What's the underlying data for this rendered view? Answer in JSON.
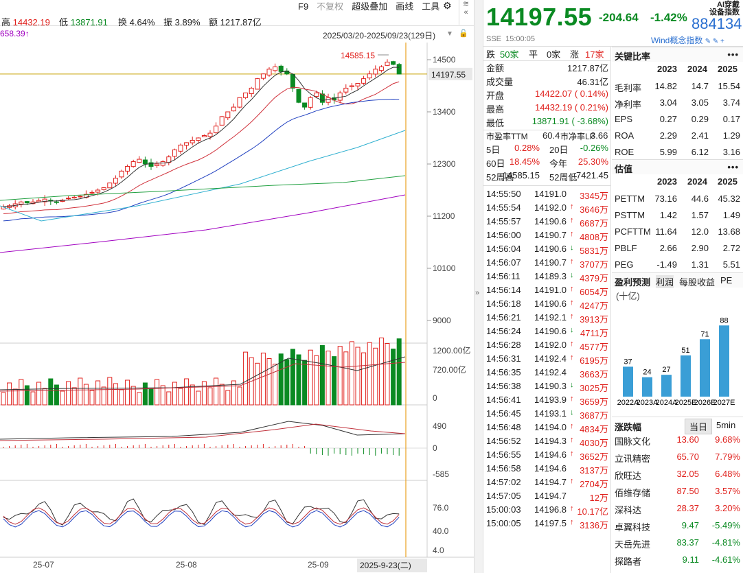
{
  "topbar": {
    "high_label": "高",
    "high": "14432.19",
    "low_label": "低",
    "low": "13871.91",
    "turn_label": "换",
    "turn": "4.64%",
    "amp_label": "振",
    "amp": "3.89%",
    "amt_label": "额",
    "amt": "1217.87亿",
    "ma_tag": "658.39↑"
  },
  "toolbar": {
    "f9": "F9",
    "nofq": "不复权",
    "overlay": "超级叠加",
    "draw": "画线",
    "tools": "工具",
    "gear": "gear-icon",
    "wifi": "wifi-icon"
  },
  "range": "2025/03/20-2025/09/23(129日)",
  "main_axis": {
    "ticks": [
      "14500",
      "13400",
      "12300",
      "11200",
      "10100",
      "9000"
    ],
    "current": "14197.55",
    "high_mark": "14585.15"
  },
  "vol_axis": {
    "ticks": [
      "1200.00亿",
      "720.00亿",
      "0"
    ]
  },
  "macd_axis": {
    "ticks": [
      "490",
      "0",
      "-585"
    ]
  },
  "kdj_axis": {
    "ticks": [
      "76.0",
      "40.0",
      "4.0"
    ]
  },
  "date_axis": {
    "ticks": [
      "25-07",
      "25-08",
      "25-09"
    ],
    "cursor": "2025-9-23(二)"
  },
  "quote": {
    "price": "14197.55",
    "change": "-204.64",
    "pct": "-1.42%",
    "code": "884134",
    "ai1": "AI穿戴",
    "ai2": "设备指数",
    "exchange": "SSE",
    "time": "15:00:05",
    "wind": "Wind概念指数"
  },
  "breadth": {
    "up_label": "跌",
    "up": "50家",
    "flat_label": "平",
    "flat": "0家",
    "down_label": "涨",
    "down": "17家"
  },
  "stats": [
    {
      "k": "金额",
      "v": "1217.87亿",
      "c": ""
    },
    {
      "k": "成交量",
      "v": "46.31亿",
      "c": ""
    },
    {
      "k": "开盘",
      "v": "14422.07 ( 0.14%)",
      "c": "red"
    },
    {
      "k": "最高",
      "v": "14432.19 ( 0.21%)",
      "c": "red"
    },
    {
      "k": "最低",
      "v": "13871.91 ( -3.68%)",
      "c": "green"
    }
  ],
  "val": {
    "pe_label": "市盈率TTM",
    "pe": "60.4",
    "pb_label": "市净率LF",
    "pb": "3.66"
  },
  "perf": [
    {
      "k": "5日",
      "v": "0.28%",
      "c": "red",
      "k2": "20日",
      "v2": "-0.26%",
      "c2": "green"
    },
    {
      "k": "60日",
      "v": "18.45%",
      "c": "red",
      "k2": "今年",
      "v2": "25.30%",
      "c2": "red"
    },
    {
      "k": "52周高",
      "v": "14585.15",
      "c": "",
      "k2": "52周低",
      "v2": "7421.45",
      "c2": ""
    }
  ],
  "ticks": [
    {
      "t": "14:55:50",
      "p": "14191.0",
      "a": "",
      "v": "3345万"
    },
    {
      "t": "14:55:54",
      "p": "14192.0",
      "a": "↑",
      "v": "3646万"
    },
    {
      "t": "14:55:57",
      "p": "14190.6",
      "a": "↑",
      "v": "6687万"
    },
    {
      "t": "14:56:00",
      "p": "14190.7",
      "a": "↑",
      "v": "4808万"
    },
    {
      "t": "14:56:04",
      "p": "14190.6",
      "a": "↓",
      "v": "5831万"
    },
    {
      "t": "14:56:07",
      "p": "14190.7",
      "a": "↑",
      "v": "3707万"
    },
    {
      "t": "14:56:11",
      "p": "14189.3",
      "a": "↓",
      "v": "4379万"
    },
    {
      "t": "14:56:14",
      "p": "14191.0",
      "a": "↑",
      "v": "6054万"
    },
    {
      "t": "14:56:18",
      "p": "14190.6",
      "a": "↑",
      "v": "4247万"
    },
    {
      "t": "14:56:21",
      "p": "14192.1",
      "a": "↑",
      "v": "3913万"
    },
    {
      "t": "14:56:24",
      "p": "14190.6",
      "a": "↓",
      "v": "4711万"
    },
    {
      "t": "14:56:28",
      "p": "14192.0",
      "a": "↑",
      "v": "4577万"
    },
    {
      "t": "14:56:31",
      "p": "14192.4",
      "a": "↑",
      "v": "6195万"
    },
    {
      "t": "14:56:35",
      "p": "14192.4",
      "a": "",
      "v": "3663万"
    },
    {
      "t": "14:56:38",
      "p": "14190.3",
      "a": "↓",
      "v": "3025万"
    },
    {
      "t": "14:56:41",
      "p": "14193.9",
      "a": "↑",
      "v": "3659万"
    },
    {
      "t": "14:56:45",
      "p": "14193.1",
      "a": "↓",
      "v": "3687万"
    },
    {
      "t": "14:56:48",
      "p": "14194.0",
      "a": "↑",
      "v": "4834万"
    },
    {
      "t": "14:56:52",
      "p": "14194.3",
      "a": "↑",
      "v": "4030万"
    },
    {
      "t": "14:56:55",
      "p": "14194.6",
      "a": "↑",
      "v": "3652万"
    },
    {
      "t": "14:56:58",
      "p": "14194.6",
      "a": "",
      "v": "3137万"
    },
    {
      "t": "14:57:02",
      "p": "14194.7",
      "a": "↑",
      "v": "2704万"
    },
    {
      "t": "14:57:05",
      "p": "14194.7",
      "a": "",
      "v": "12万"
    },
    {
      "t": "15:00:03",
      "p": "14196.8",
      "a": "↑",
      "v": "10.17亿"
    },
    {
      "t": "15:00:05",
      "p": "14197.5",
      "a": "↑",
      "v": "3136万"
    }
  ],
  "key_ratios": {
    "title": "关键比率",
    "years": [
      "2023",
      "2024",
      "2025"
    ],
    "rows": [
      {
        "k": "毛利率",
        "v": [
          "14.82",
          "14.7",
          "15.54"
        ]
      },
      {
        "k": "净利率",
        "v": [
          "3.04",
          "3.05",
          "3.74"
        ]
      },
      {
        "k": "EPS",
        "v": [
          "0.27",
          "0.29",
          "0.17"
        ]
      },
      {
        "k": "ROA",
        "v": [
          "2.29",
          "2.41",
          "1.29"
        ]
      },
      {
        "k": "ROE",
        "v": [
          "5.99",
          "6.12",
          "3.16"
        ]
      }
    ]
  },
  "valuation": {
    "title": "估值",
    "years": [
      "2023",
      "2024",
      "2025"
    ],
    "rows": [
      {
        "k": "PETTM",
        "v": [
          "73.16",
          "44.6",
          "45.32"
        ]
      },
      {
        "k": "PSTTM",
        "v": [
          "1.42",
          "1.57",
          "1.49"
        ]
      },
      {
        "k": "PCFTTM",
        "v": [
          "11.64",
          "12.0",
          "13.68"
        ]
      },
      {
        "k": "PBLF",
        "v": [
          "2.66",
          "2.90",
          "2.72"
        ]
      },
      {
        "k": "PEG",
        "v": [
          "-1.49",
          "1.31",
          "5.51"
        ]
      }
    ]
  },
  "profit": {
    "tabs": [
      "盈利预测",
      "利润",
      "每股收益",
      "PE"
    ],
    "unit": "(十亿)"
  },
  "chart_data": {
    "type": "bar",
    "categories": [
      "2022A",
      "2023A",
      "2024A",
      "2025E",
      "2026E",
      "2027E"
    ],
    "values": [
      37,
      24,
      27,
      51,
      71,
      88
    ],
    "ylim": [
      0,
      95
    ]
  },
  "movers": {
    "title": "涨跌幅",
    "tab1": "当日",
    "tab2": "5min",
    "rows": [
      {
        "n": "国脉文化",
        "p": "13.60",
        "c": "9.68%",
        "col": "red"
      },
      {
        "n": "立讯精密",
        "p": "65.70",
        "c": "7.79%",
        "col": "red"
      },
      {
        "n": "欣旺达",
        "p": "32.05",
        "c": "6.48%",
        "col": "red"
      },
      {
        "n": "佰维存储",
        "p": "87.50",
        "c": "3.57%",
        "col": "red"
      },
      {
        "n": "深科达",
        "p": "28.37",
        "c": "3.20%",
        "col": "red"
      },
      {
        "n": "卓翼科技",
        "p": "9.47",
        "c": "-5.49%",
        "col": "green"
      },
      {
        "n": "天岳先进",
        "p": "83.37",
        "c": "-4.81%",
        "col": "green"
      },
      {
        "n": "探路者",
        "p": "9.11",
        "c": "-4.61%",
        "col": "green"
      }
    ]
  },
  "colors": {
    "up": "#e0201c",
    "down": "#0a8a22",
    "accent": "#2a6fd0"
  }
}
